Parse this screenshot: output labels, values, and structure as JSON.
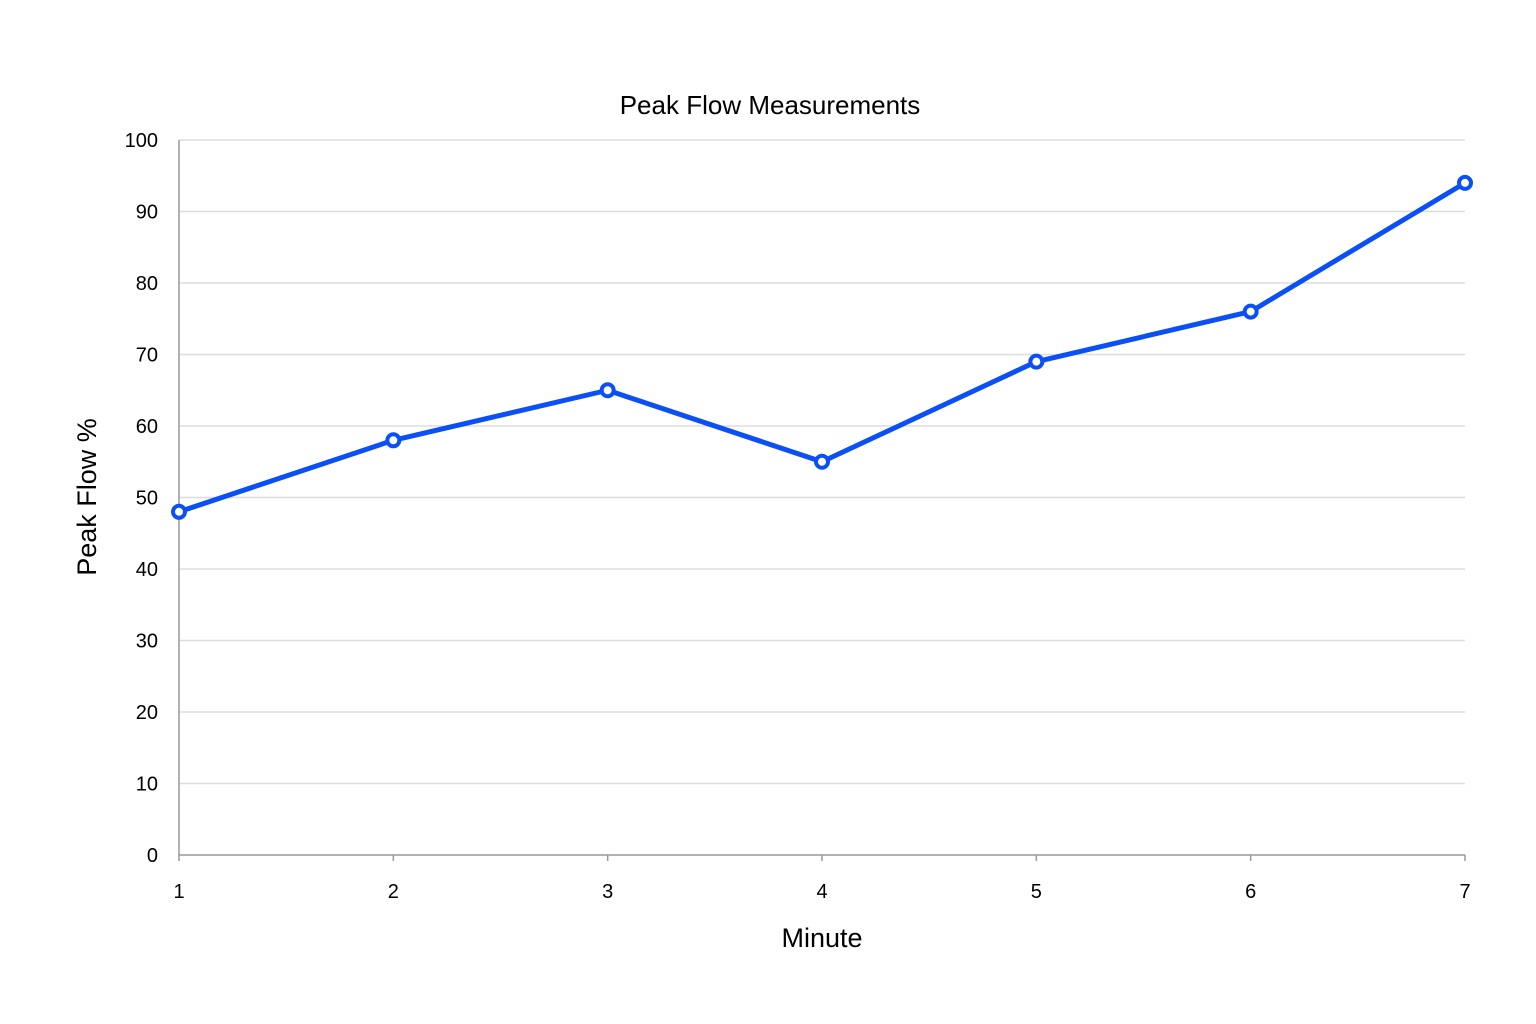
{
  "chart_data": {
    "type": "line",
    "title": "Peak Flow Measurements",
    "xlabel": "Minute",
    "ylabel": "Peak Flow %",
    "x": [
      1,
      2,
      3,
      4,
      5,
      6,
      7
    ],
    "x_tick_labels": [
      "1",
      "2",
      "3",
      "4",
      "5",
      "6",
      "7"
    ],
    "y_ticks": [
      0,
      10,
      20,
      30,
      40,
      50,
      60,
      70,
      80,
      90,
      100
    ],
    "y_tick_labels": [
      "0",
      "10",
      "20",
      "30",
      "40",
      "50",
      "60",
      "70",
      "80",
      "90",
      "100"
    ],
    "ylim": [
      0,
      100
    ],
    "xlim": [
      1,
      7
    ],
    "grid": true,
    "legend": "none",
    "series": [
      {
        "values": [
          48,
          58,
          65,
          55,
          69,
          76,
          94
        ],
        "color": "#0b50f6"
      }
    ]
  }
}
